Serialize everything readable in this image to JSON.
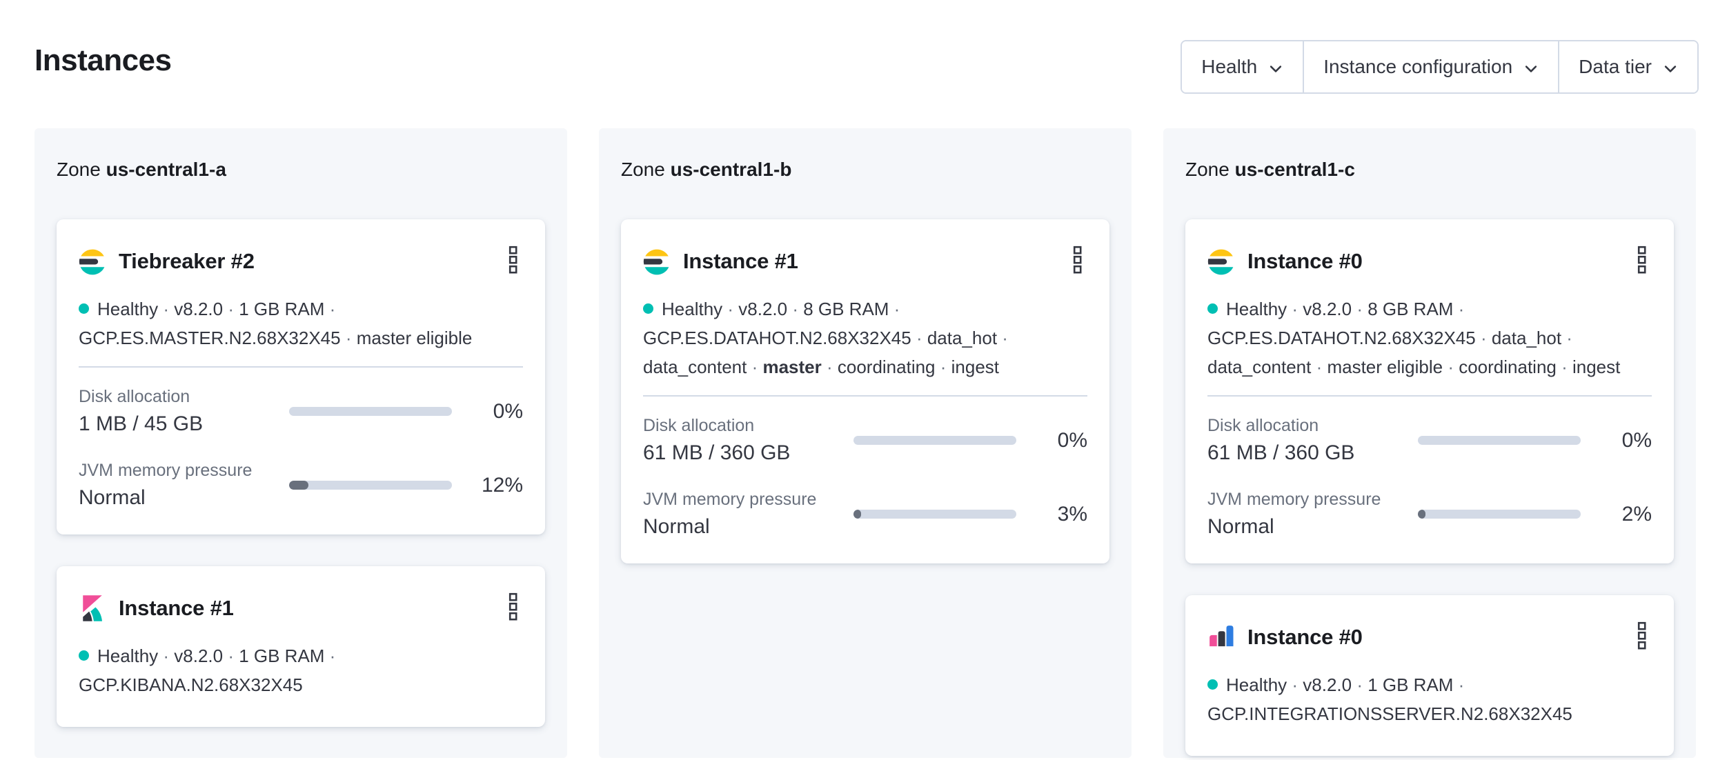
{
  "page": {
    "title": "Instances"
  },
  "filters": [
    {
      "label": "Health"
    },
    {
      "label": "Instance configuration"
    },
    {
      "label": "Data tier"
    }
  ],
  "colors": {
    "healthy": "#00BFB3",
    "es_yellow": "#FEC514",
    "es_dark": "#343741",
    "es_teal": "#00BFB3",
    "kibana_pink": "#F04E98",
    "integrations_blue": "#2E7DE1",
    "bar_track": "#D3DAE6",
    "bar_fill": "#69707D"
  },
  "zones": [
    {
      "label": "Zone",
      "name": "us-central1-a",
      "instances": [
        {
          "logo": "elasticsearch-logo",
          "title": "Tiebreaker #2",
          "health_status": "Healthy",
          "meta": [
            {
              "text": "Healthy"
            },
            {
              "text": "v8.2.0"
            },
            {
              "text": "1 GB RAM"
            },
            {
              "text": "GCP.ES.MASTER.N2.68X32X45"
            },
            {
              "text": "master eligible"
            }
          ],
          "metrics": [
            {
              "label": "Disk allocation",
              "value": "1 MB / 45 GB",
              "percent_label": "0%",
              "percent_value": 0
            },
            {
              "label": "JVM memory pressure",
              "value": "Normal",
              "percent_label": "12%",
              "percent_value": 12
            }
          ]
        },
        {
          "logo": "kibana-logo",
          "title": "Instance #1",
          "health_status": "Healthy",
          "meta": [
            {
              "text": "Healthy"
            },
            {
              "text": "v8.2.0"
            },
            {
              "text": "1 GB RAM"
            },
            {
              "text": "GCP.KIBANA.N2.68X32X45"
            }
          ],
          "metrics": []
        }
      ]
    },
    {
      "label": "Zone",
      "name": "us-central1-b",
      "instances": [
        {
          "logo": "elasticsearch-logo",
          "title": "Instance #1",
          "health_status": "Healthy",
          "meta": [
            {
              "text": "Healthy"
            },
            {
              "text": "v8.2.0"
            },
            {
              "text": "8 GB RAM"
            },
            {
              "text": "GCP.ES.DATAHOT.N2.68X32X45"
            },
            {
              "text": "data_hot"
            },
            {
              "text": "data_content"
            },
            {
              "text": "master",
              "bold": true
            },
            {
              "text": "coordinating"
            },
            {
              "text": "ingest"
            }
          ],
          "metrics": [
            {
              "label": "Disk allocation",
              "value": "61 MB / 360 GB",
              "percent_label": "0%",
              "percent_value": 0
            },
            {
              "label": "JVM memory pressure",
              "value": "Normal",
              "percent_label": "3%",
              "percent_value": 3
            }
          ]
        }
      ]
    },
    {
      "label": "Zone",
      "name": "us-central1-c",
      "instances": [
        {
          "logo": "elasticsearch-logo",
          "title": "Instance #0",
          "health_status": "Healthy",
          "meta": [
            {
              "text": "Healthy"
            },
            {
              "text": "v8.2.0"
            },
            {
              "text": "8 GB RAM"
            },
            {
              "text": "GCP.ES.DATAHOT.N2.68X32X45"
            },
            {
              "text": "data_hot"
            },
            {
              "text": "data_content"
            },
            {
              "text": "master eligible"
            },
            {
              "text": "coordinating"
            },
            {
              "text": "ingest"
            }
          ],
          "metrics": [
            {
              "label": "Disk allocation",
              "value": "61 MB / 360 GB",
              "percent_label": "0%",
              "percent_value": 0
            },
            {
              "label": "JVM memory pressure",
              "value": "Normal",
              "percent_label": "2%",
              "percent_value": 2
            }
          ]
        },
        {
          "logo": "integrations-server-logo",
          "title": "Instance #0",
          "health_status": "Healthy",
          "meta": [
            {
              "text": "Healthy"
            },
            {
              "text": "v8.2.0"
            },
            {
              "text": "1 GB RAM"
            },
            {
              "text": "GCP.INTEGRATIONSSERVER.N2.68X32X45"
            }
          ],
          "metrics": []
        }
      ]
    }
  ]
}
